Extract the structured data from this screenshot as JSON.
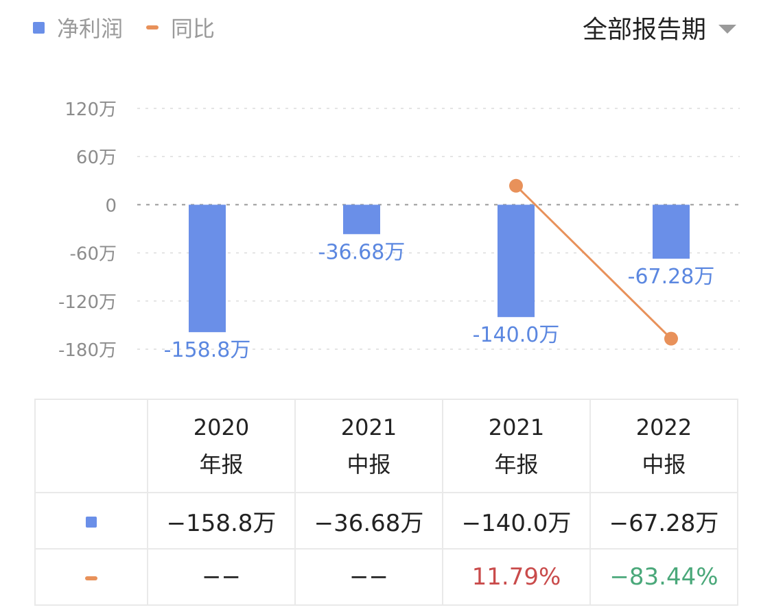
{
  "colors": {
    "bar": "#6a8fe8",
    "line": "#e8915a",
    "axis_text": "#8c8c8c",
    "value_label": "#5b87e0",
    "positive": "#c94b4b",
    "negative": "#4aa87a"
  },
  "legend": [
    {
      "label": "净利润",
      "kind": "bar"
    },
    {
      "label": "同比",
      "kind": "line"
    }
  ],
  "period_selector": {
    "label": "全部报告期",
    "icon": "caret-down-icon"
  },
  "chart_data": {
    "type": "bar",
    "categories": [
      "2020年报",
      "2021中报",
      "2021年报",
      "2022中报"
    ],
    "y_ticks": [
      "120万",
      "60万",
      "0",
      "-60万",
      "-120万",
      "-180万"
    ],
    "ylim": [
      -180,
      120
    ],
    "y_unit": "万",
    "grid": true,
    "legend_position": "top-left",
    "series": [
      {
        "name": "净利润",
        "type": "bar",
        "values": [
          -158.8,
          -36.68,
          -140.0,
          -67.28
        ],
        "labels": [
          "-158.8万",
          "-36.68万",
          "-140.0万",
          "-67.28万"
        ]
      },
      {
        "name": "同比",
        "type": "line",
        "values": [
          null,
          null,
          11.79,
          -83.44
        ],
        "unit": "%"
      }
    ]
  },
  "table": {
    "headers": [
      {
        "year": "2020",
        "type": "年报"
      },
      {
        "year": "2021",
        "type": "中报"
      },
      {
        "year": "2021",
        "type": "年报"
      },
      {
        "year": "2022",
        "type": "中报"
      }
    ],
    "profit_row": [
      "−158.8万",
      "−36.68万",
      "−140.0万",
      "−67.28万"
    ],
    "yoy_row": [
      {
        "text": "−−",
        "tone": "neutral"
      },
      {
        "text": "−−",
        "tone": "neutral"
      },
      {
        "text": "11.79%",
        "tone": "positive"
      },
      {
        "text": "−83.44%",
        "tone": "negative"
      }
    ]
  }
}
